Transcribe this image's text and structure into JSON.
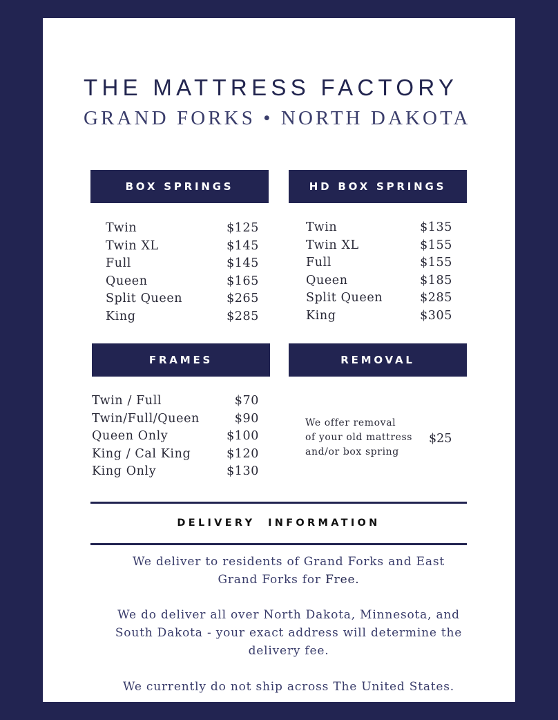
{
  "title": "THE MATTRESS FACTORY",
  "subtitle": "GRAND FORKS • NORTH DAKOTA",
  "colors": {
    "navy": "#222451",
    "text": "#2a2a38"
  },
  "box_springs": {
    "heading": "BOX SPRINGS",
    "items": [
      {
        "name": "Twin",
        "price": "$125"
      },
      {
        "name": "Twin XL",
        "price": "$145"
      },
      {
        "name": "Full",
        "price": "$145"
      },
      {
        "name": "Queen",
        "price": "$165"
      },
      {
        "name": "Split Queen",
        "price": "$265"
      },
      {
        "name": "King",
        "price": "$285"
      }
    ]
  },
  "hd_box_springs": {
    "heading": "HD BOX SPRINGS",
    "items": [
      {
        "name": "Twin",
        "price": "$135"
      },
      {
        "name": "Twin XL",
        "price": "$155"
      },
      {
        "name": "Full",
        "price": "$155"
      },
      {
        "name": "Queen",
        "price": "$185"
      },
      {
        "name": "Split Queen",
        "price": "$285"
      },
      {
        "name": "King",
        "price": "$305"
      }
    ]
  },
  "frames": {
    "heading": "FRAMES",
    "items": [
      {
        "name": "Twin / Full",
        "price": "$70"
      },
      {
        "name": "Twin/Full/Queen",
        "price": "$90"
      },
      {
        "name": "Queen Only",
        "price": "$100"
      },
      {
        "name": "King / Cal King",
        "price": "$120"
      },
      {
        "name": "King Only",
        "price": "$130"
      }
    ]
  },
  "removal": {
    "heading": "REMOVAL",
    "lines": [
      "We offer removal",
      "of your old mattress",
      "and/or box spring"
    ],
    "price": "$25"
  },
  "delivery": {
    "heading": "DELIVERY  INFORMATION",
    "p1": "We deliver to residents of Grand Forks and East Grand Forks for ",
    "p1_emph": "Free.",
    "p2": "We do deliver all over North Dakota, Minnesota, and South Dakota - your exact address will determine the delivery fee.",
    "p3": "We currently do not ship across The United States."
  }
}
